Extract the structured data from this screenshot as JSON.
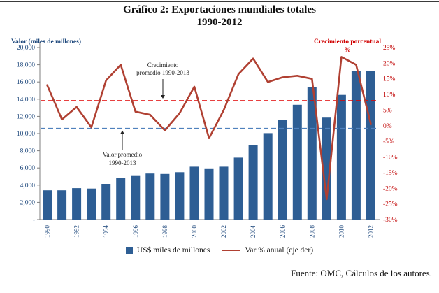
{
  "footer": {
    "source": "Fuente: OMC, Cálculos de los autores."
  },
  "chart_data": {
    "type": "bar+line combo",
    "title_line1": "Gráfico 2: Exportaciones mundiales totales",
    "title_line2": "1990-2012",
    "categories": [
      1990,
      1991,
      1992,
      1993,
      1994,
      1995,
      1996,
      1997,
      1998,
      1999,
      2000,
      2001,
      2002,
      2003,
      2004,
      2005,
      2006,
      2007,
      2008,
      2009,
      2010,
      2011,
      2012
    ],
    "x_tick_labels": [
      "1990",
      "1992",
      "1994",
      "1996",
      "1998",
      "2000",
      "2002",
      "2004",
      "2006",
      "2008",
      "2010",
      "2012"
    ],
    "series": [
      {
        "name": "US$ miles de millones",
        "type": "bar",
        "axis": "left",
        "color": "#2E5E94",
        "values": [
          3400,
          3400,
          3650,
          3600,
          4150,
          4850,
          5150,
          5350,
          5300,
          5500,
          6150,
          5950,
          6150,
          7200,
          8700,
          10050,
          11550,
          13350,
          15400,
          11850,
          14500,
          17250,
          17300
        ]
      },
      {
        "name": "Var % anual (eje der)",
        "type": "line",
        "axis": "right",
        "color": "#B04032",
        "values": [
          13,
          2,
          6,
          -0.5,
          14.5,
          19.5,
          4.5,
          3.5,
          -1.5,
          4,
          12.5,
          -4,
          5,
          16.5,
          21.5,
          14,
          15.5,
          16,
          15,
          -23.5,
          22,
          19.5,
          0.5
        ]
      }
    ],
    "left_axis": {
      "title": "Valor (miles de millones)",
      "min": 0,
      "max": 20000,
      "step": 2000,
      "tick_labels": [
        "-",
        "2,000",
        "4,000",
        "6,000",
        "8,000",
        "10,000",
        "12,000",
        "14,000",
        "16,000",
        "18,000",
        "20,000"
      ],
      "color": "#1F497D"
    },
    "right_axis": {
      "title_lines": [
        "Crecimiento porcentual",
        "%"
      ],
      "min": -30,
      "max": 25,
      "step": 5,
      "tick_labels": [
        "-30%",
        "-25%",
        "-20%",
        "-15%",
        "-10%",
        "-5%",
        "0%",
        "5%",
        "10%",
        "15%",
        "20%",
        "25%"
      ],
      "color": "#C00000"
    },
    "reference_lines": [
      {
        "id": "value-average-line",
        "axis": "left",
        "value": 10600,
        "style": "dashed",
        "color": "#4F81BD"
      },
      {
        "id": "growth-average-line",
        "axis": "right",
        "value": 8,
        "style": "dashed",
        "color": "#E00000"
      }
    ],
    "annotations": [
      {
        "id": "growth-average-note",
        "lines": [
          "Crecimiento",
          "promedio 1990-2013"
        ]
      },
      {
        "id": "value-average-note",
        "lines": [
          "Valor promedio",
          "1990-2013"
        ]
      }
    ],
    "legend": {
      "bar_label": "US$ miles de millones",
      "line_label": "Var % anual (eje der)"
    },
    "grid": "off",
    "legend_position": "bottom-center"
  }
}
